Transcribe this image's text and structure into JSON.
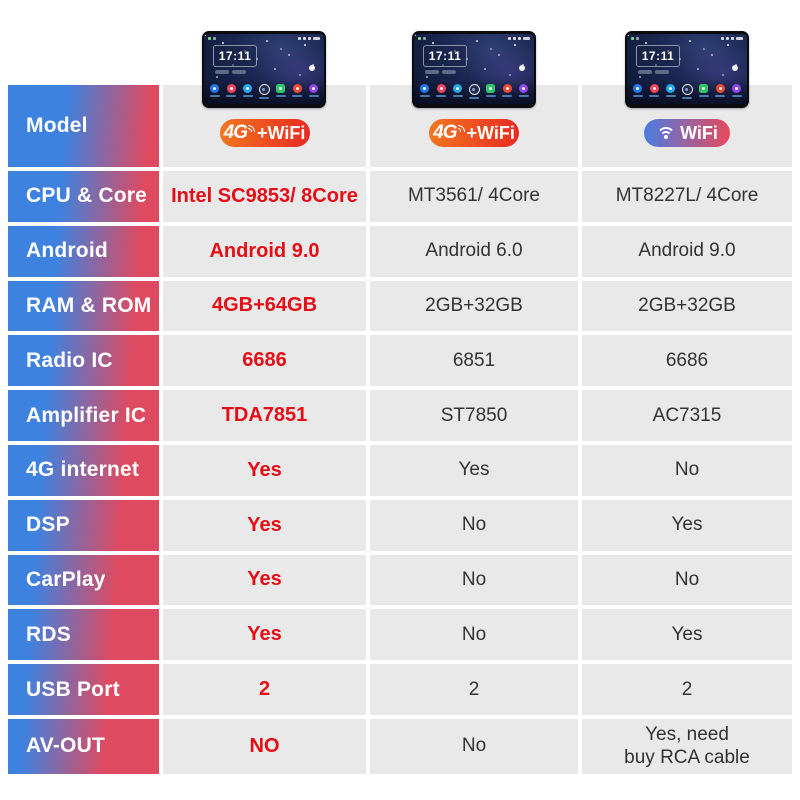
{
  "header": {
    "device_time": "17:11",
    "badges": [
      {
        "prefix": "4G",
        "suffix": "+WiFi",
        "type": "4g-wifi"
      },
      {
        "prefix": "4G",
        "suffix": "+WiFi",
        "type": "4g-wifi"
      },
      {
        "label": "WiFi",
        "type": "wifi"
      }
    ],
    "dock_icons": [
      "navigation",
      "music",
      "bluetooth",
      "apps",
      "widgets",
      "radio",
      "settings"
    ]
  },
  "colors": {
    "sidebar_gradient_start": "#3E82DF",
    "sidebar_gradient_end": "#DE4A60",
    "cell_background": "#e9e9e9",
    "highlight_text": "#e60d16",
    "value_text": "#333333",
    "badge_4g_gradient": [
      "#f2761f",
      "#e92a22"
    ],
    "badge_wifi_gradient": [
      "#4a7de2",
      "#e8495c"
    ]
  },
  "table": {
    "rows": [
      {
        "label": "Model"
      },
      {
        "label": "CPU & Core",
        "values": [
          "Intel SC9853/ 8Core",
          "MT3561/ 4Core",
          "MT8227L/ 4Core"
        ]
      },
      {
        "label": "Android",
        "values": [
          "Android 9.0",
          "Android 6.0",
          "Android 9.0"
        ]
      },
      {
        "label": "RAM & ROM",
        "values": [
          "4GB+64GB",
          "2GB+32GB",
          "2GB+32GB"
        ]
      },
      {
        "label": "Radio IC",
        "values": [
          "6686",
          "6851",
          "6686"
        ]
      },
      {
        "label": "Amplifier IC",
        "values": [
          "TDA7851",
          "ST7850",
          "AC7315"
        ]
      },
      {
        "label": "4G internet",
        "values": [
          "Yes",
          "Yes",
          "No"
        ]
      },
      {
        "label": "DSP",
        "values": [
          "Yes",
          "No",
          "Yes"
        ]
      },
      {
        "label": "CarPlay",
        "values": [
          "Yes",
          "No",
          "No"
        ]
      },
      {
        "label": "RDS",
        "values": [
          "Yes",
          "No",
          "Yes"
        ]
      },
      {
        "label": "USB Port",
        "values": [
          "2",
          "2",
          "2"
        ]
      },
      {
        "label": "AV-OUT",
        "values": [
          "NO",
          "No",
          "Yes, need\nbuy RCA cable"
        ]
      }
    ]
  }
}
